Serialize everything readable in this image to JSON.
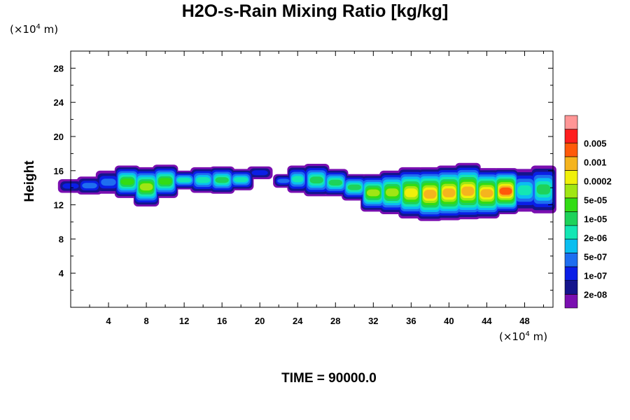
{
  "chart_data": {
    "type": "contour",
    "title": "H2O-s-Rain Mixing Ratio [kg/kg]",
    "xlabel": "",
    "ylabel": "Height",
    "x_unit": "(×10",
    "x_unit_exp": "4",
    "x_unit_suffix": " m)",
    "y_unit": "(×10",
    "y_unit_exp": "4",
    "y_unit_suffix": " m)",
    "footer": "TIME = 90000.0",
    "xlim": [
      0,
      51
    ],
    "ylim": [
      0,
      30
    ],
    "x_ticks": [
      4,
      8,
      12,
      16,
      20,
      24,
      28,
      32,
      36,
      40,
      44,
      48
    ],
    "y_ticks": [
      4,
      8,
      12,
      16,
      20,
      24,
      28
    ],
    "colorbar": {
      "labels": [
        "0.005",
        "0.001",
        "0.0002",
        "5e-05",
        "1e-05",
        "2e-06",
        "5e-07",
        "1e-07",
        "2e-08"
      ],
      "colors": [
        "#7a0fb0",
        "#14148c",
        "#0a1ee6",
        "#1e6ef0",
        "#0abef0",
        "#14e6b4",
        "#1ed25a",
        "#32dc14",
        "#a0e614",
        "#f0f00a",
        "#f5b41e",
        "#ff5a0a",
        "#ff1e1e",
        "#ff9696"
      ]
    },
    "cells": [
      {
        "x": 0,
        "y0": 13.4,
        "y1": 15.0,
        "l": [
          2,
          2
        ]
      },
      {
        "x": 2,
        "y0": 13.2,
        "y1": 15.3,
        "l": [
          2,
          3
        ]
      },
      {
        "x": 4,
        "y0": 13.3,
        "y1": 16.0,
        "l": [
          2,
          3
        ]
      },
      {
        "x": 6,
        "y0": 12.8,
        "y1": 16.6,
        "l": [
          3,
          7
        ]
      },
      {
        "x": 8,
        "y0": 12.4,
        "y1": 17.0,
        "l": [
          3,
          8
        ]
      },
      {
        "x": 10,
        "y0": 12.8,
        "y1": 16.7,
        "l": [
          3,
          7
        ]
      },
      {
        "x": 12,
        "y0": 13.8,
        "y1": 16.0,
        "l": [
          2,
          5
        ]
      },
      {
        "x": 14,
        "y0": 13.4,
        "y1": 16.4,
        "l": [
          3,
          5
        ]
      },
      {
        "x": 16,
        "y0": 13.3,
        "y1": 16.5,
        "l": [
          3,
          6
        ]
      },
      {
        "x": 18,
        "y0": 13.7,
        "y1": 16.2,
        "l": [
          3,
          5
        ]
      },
      {
        "x": 20,
        "y0": 15.0,
        "y1": 16.5,
        "l": [
          2,
          2
        ]
      },
      {
        "x": 22.5,
        "y0": 14.0,
        "y1": 15.6,
        "l": [
          2,
          3
        ]
      },
      {
        "x": 24,
        "y0": 13.4,
        "y1": 16.6,
        "l": [
          3,
          5
        ]
      },
      {
        "x": 26,
        "y0": 13.0,
        "y1": 16.8,
        "l": [
          3,
          6
        ]
      },
      {
        "x": 28,
        "y0": 13.0,
        "y1": 16.2,
        "l": [
          3,
          6
        ]
      },
      {
        "x": 30,
        "y0": 12.5,
        "y1": 15.6,
        "l": [
          3,
          6
        ]
      },
      {
        "x": 32,
        "y0": 11.8,
        "y1": 16.2,
        "l": [
          3,
          8
        ]
      },
      {
        "x": 34,
        "y0": 11.5,
        "y1": 16.6,
        "l": [
          3,
          8
        ]
      },
      {
        "x": 36,
        "y0": 11.0,
        "y1": 17.0,
        "l": [
          3,
          9
        ]
      },
      {
        "x": 38,
        "y0": 10.7,
        "y1": 17.0,
        "l": [
          3,
          10
        ]
      },
      {
        "x": 40,
        "y0": 10.8,
        "y1": 17.2,
        "l": [
          3,
          10
        ]
      },
      {
        "x": 42,
        "y0": 10.9,
        "y1": 17.5,
        "l": [
          3,
          10
        ]
      },
      {
        "x": 44,
        "y0": 11.0,
        "y1": 16.9,
        "l": [
          3,
          10
        ]
      },
      {
        "x": 46,
        "y0": 11.5,
        "y1": 16.9,
        "l": [
          3,
          11
        ]
      },
      {
        "x": 48,
        "y0": 11.2,
        "y1": 16.2,
        "l": [
          3,
          5
        ]
      },
      {
        "x": 50,
        "y0": 11.0,
        "y1": 16.6,
        "l": [
          3,
          6
        ]
      }
    ]
  }
}
